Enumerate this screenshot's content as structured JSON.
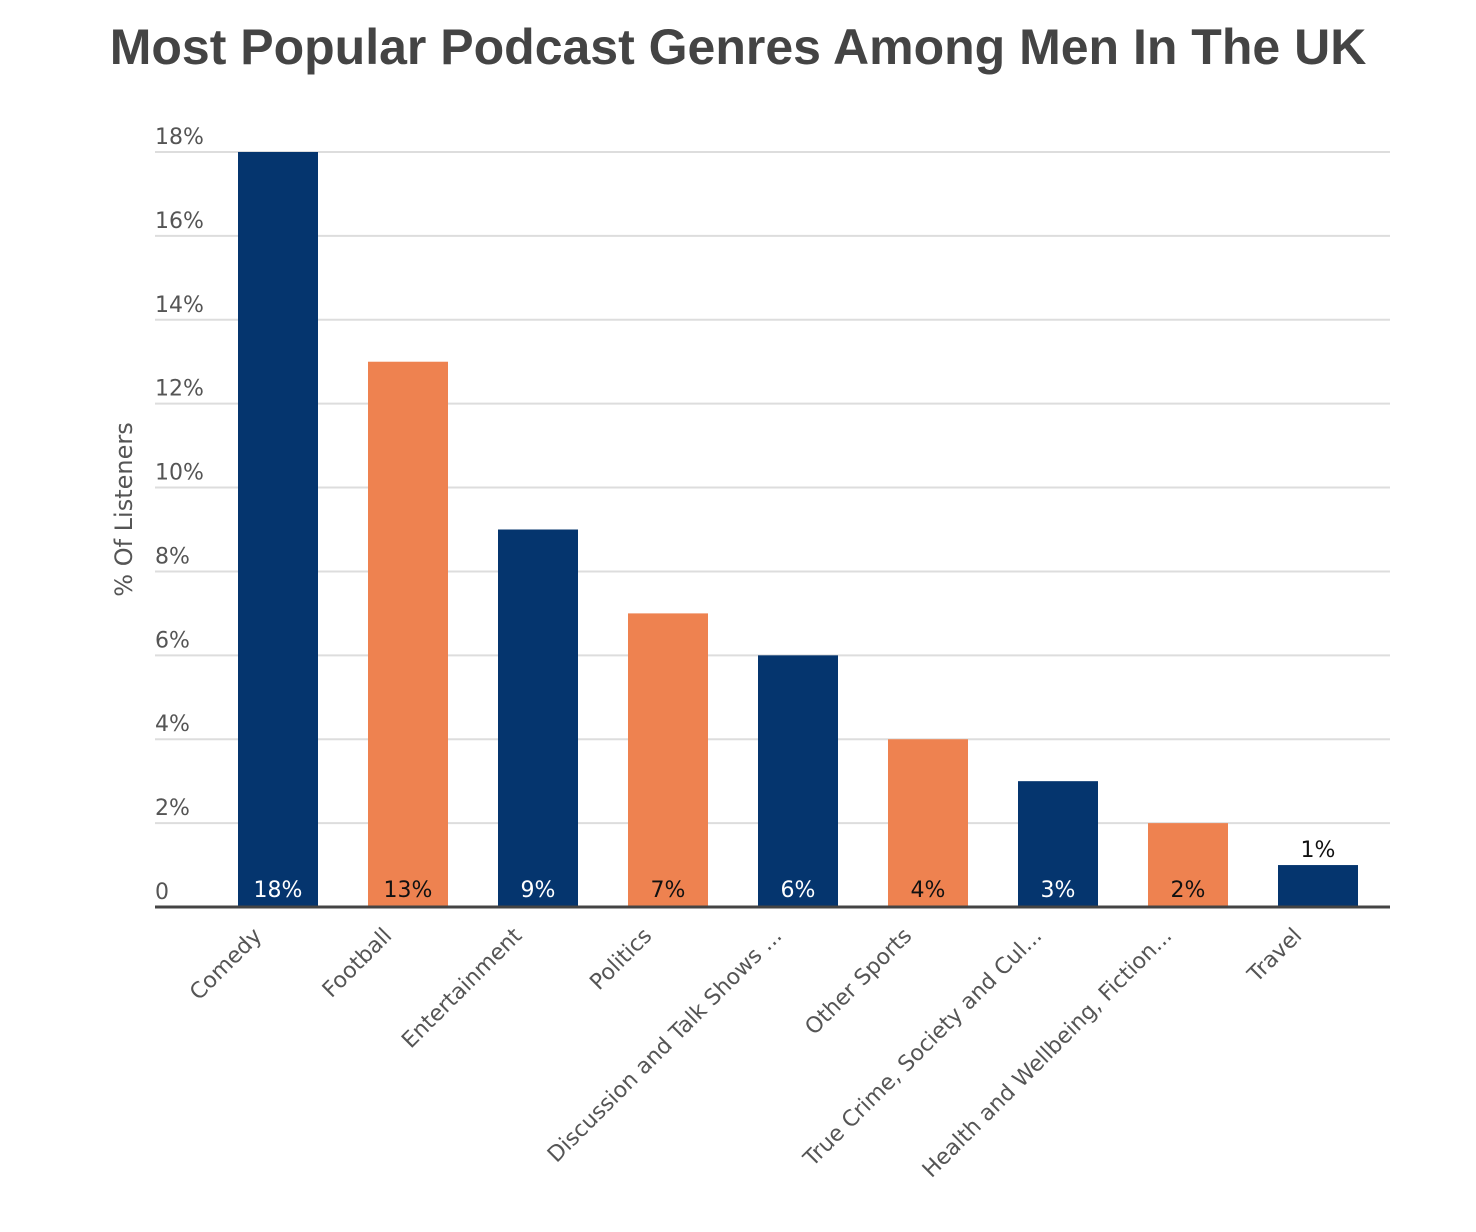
{
  "chart_data": {
    "type": "bar",
    "title": "Most Popular Podcast Genres Among Men In The UK",
    "xlabel": "",
    "ylabel": "% Of Listeners",
    "categories": [
      "Comedy",
      "Football",
      "Entertainment",
      "Politics",
      "Discussion and Talk Shows ...",
      "Other Sports",
      "True Crime, Society and Cul...",
      "Health and Wellbeing, Fiction...",
      "Travel"
    ],
    "values": [
      18,
      13,
      9,
      7,
      6,
      4,
      3,
      2,
      1
    ],
    "value_labels": [
      "18%",
      "13%",
      "9%",
      "7%",
      "6%",
      "4%",
      "3%",
      "2%",
      "1%"
    ],
    "ylim": [
      0,
      18
    ],
    "yticks": [
      0,
      2,
      4,
      6,
      8,
      10,
      12,
      14,
      16,
      18
    ],
    "ytick_labels": [
      "0",
      "2%",
      "4%",
      "6%",
      "8%",
      "10%",
      "12%",
      "14%",
      "16%",
      "18%"
    ],
    "grid": true,
    "legend": "none",
    "colors": {
      "navy": "#05356e",
      "orange": "#ee8250",
      "grid": "#dddddd",
      "axis": "#444444"
    },
    "bar_colors": [
      "navy",
      "orange",
      "navy",
      "orange",
      "navy",
      "orange",
      "navy",
      "orange",
      "navy"
    ]
  }
}
